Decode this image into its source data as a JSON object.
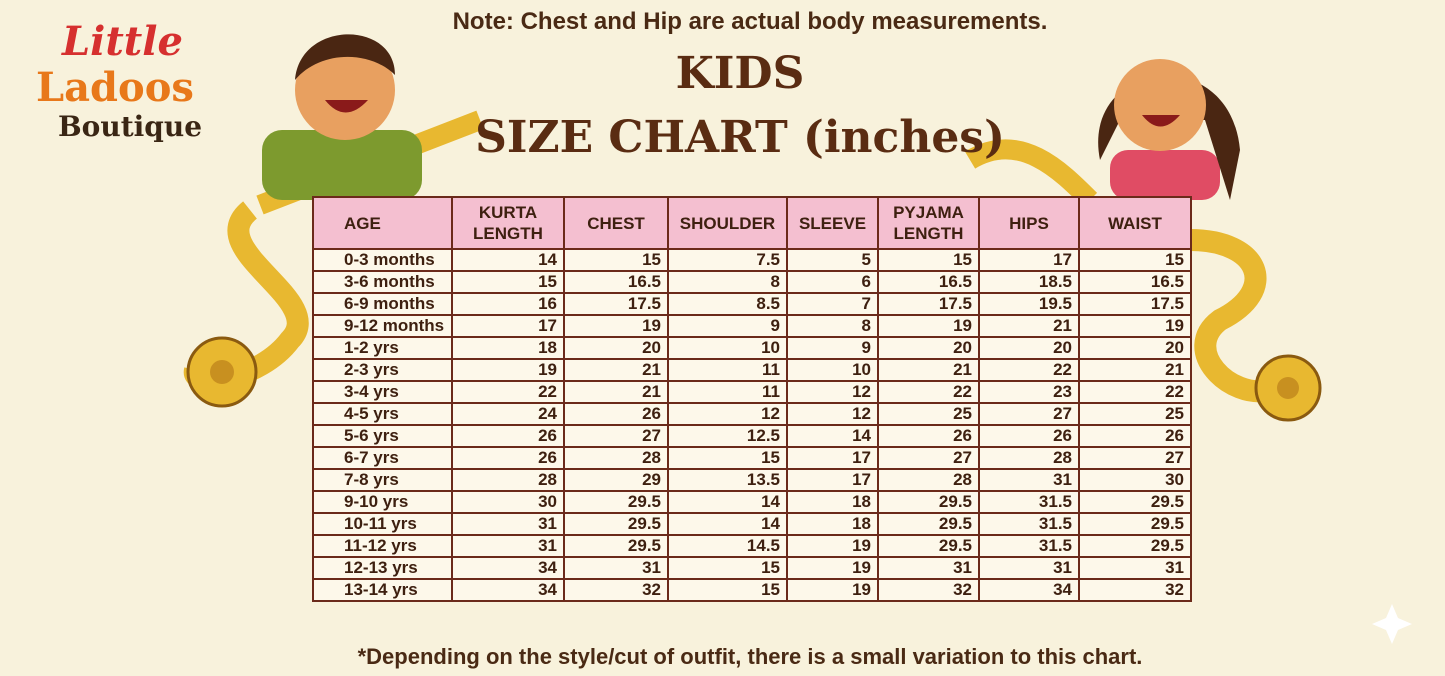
{
  "logo": {
    "line1": "Little",
    "line2": "Ladoos",
    "line3": "Boutique"
  },
  "note": "Note: Chest and Hip are actual body measurements.",
  "title": {
    "line1": "KIDS",
    "line2": "SIZE CHART (inches)"
  },
  "table": {
    "header": [
      "AGE",
      "KURTA LENGTH",
      "CHEST",
      "SHOULDER",
      "SLEEVE",
      "PYJAMA LENGTH",
      "HIPS",
      "WAIST"
    ],
    "rows": [
      [
        "0-3 months",
        14,
        15,
        7.5,
        5,
        15,
        17,
        15
      ],
      [
        "3-6 months",
        15,
        16.5,
        8,
        6,
        16.5,
        18.5,
        16.5
      ],
      [
        "6-9 months",
        16,
        17.5,
        8.5,
        7,
        17.5,
        19.5,
        17.5
      ],
      [
        "9-12 months",
        17,
        19,
        9,
        8,
        19,
        21,
        19
      ],
      [
        "1-2 yrs",
        18,
        20,
        10,
        9,
        20,
        20,
        20
      ],
      [
        "2-3 yrs",
        19,
        21,
        11,
        10,
        21,
        22,
        21
      ],
      [
        "3-4 yrs",
        22,
        21,
        11,
        12,
        22,
        23,
        22
      ],
      [
        "4-5 yrs",
        24,
        26,
        12,
        12,
        25,
        27,
        25
      ],
      [
        "5-6 yrs",
        26,
        27,
        12.5,
        14,
        26,
        26,
        26
      ],
      [
        "6-7 yrs",
        26,
        28,
        15,
        17,
        27,
        28,
        27
      ],
      [
        "7-8 yrs",
        28,
        29,
        13.5,
        17,
        28,
        31,
        30
      ],
      [
        "9-10 yrs",
        30,
        29.5,
        14,
        18,
        29.5,
        31.5,
        29.5
      ],
      [
        "10-11 yrs",
        31,
        29.5,
        14,
        18,
        29.5,
        31.5,
        29.5
      ],
      [
        "11-12 yrs",
        31,
        29.5,
        14.5,
        19,
        29.5,
        31.5,
        29.5
      ],
      [
        "12-13 yrs",
        34,
        31,
        15,
        19,
        31,
        31,
        31
      ],
      [
        "13-14 yrs",
        34,
        32,
        15,
        19,
        32,
        34,
        32
      ]
    ]
  },
  "footnote": "*Depending on the style/cut of outfit, there is a small variation to this chart."
}
